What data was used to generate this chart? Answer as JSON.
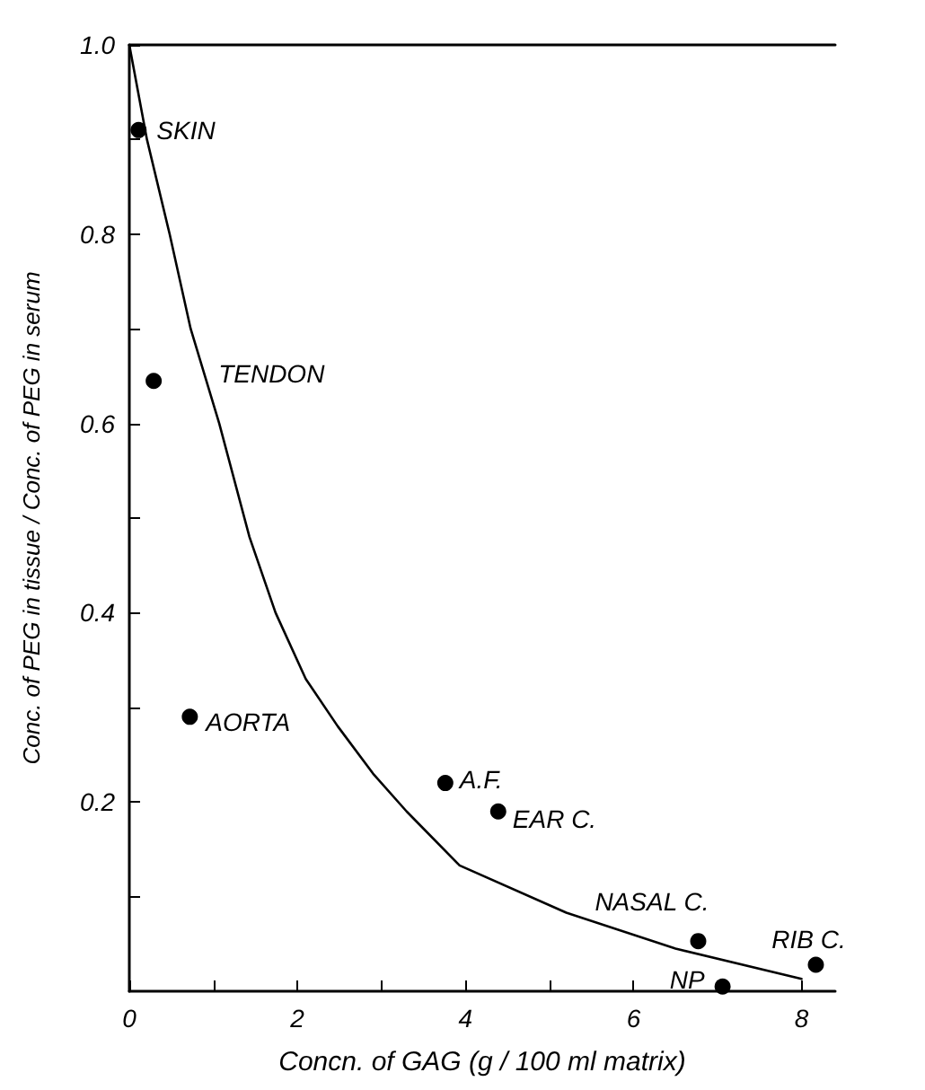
{
  "chart_data": {
    "type": "scatter",
    "xlabel": "Concn. of GAG (g / 100 ml matrix)",
    "ylabel": "Conc. of PEG in tissue / Conc. of PEG in serum",
    "xlim": [
      0,
      8.4
    ],
    "ylim": [
      0,
      1.0
    ],
    "xticks": [
      0,
      {
        "value": 1,
        "label": null
      },
      2,
      {
        "value": 3,
        "label": null
      },
      4,
      {
        "value": 5,
        "label": null
      },
      6,
      {
        "value": 7,
        "label": null
      },
      8
    ],
    "yticks": [
      {
        "value": 0.1,
        "label": null
      },
      0.2,
      {
        "value": 0.3,
        "label": null
      },
      0.4,
      {
        "value": 0.5,
        "label": null
      },
      0.6,
      {
        "value": 0.7,
        "label": null
      },
      0.8,
      {
        "value": 0.9,
        "label": null
      },
      {
        "value": 1,
        "label": "1.0"
      }
    ],
    "grid": false,
    "marker": "circle",
    "series": [
      {
        "color": "#000000",
        "x": [
          0.11,
          0.29,
          0.72,
          3.76,
          4.39,
          6.77,
          7.06,
          8.17
        ],
        "values": [
          0.91,
          0.645,
          0.29,
          0.22,
          0.19,
          0.053,
          0.005,
          0.028
        ]
      },
      {
        "type": "line",
        "color": "#000000",
        "marker": "none",
        "line_style": "solid",
        "x": [
          0,
          0.21,
          0.48,
          0.73,
          1.07,
          1.43,
          1.74,
          2.1,
          2.48,
          2.9,
          3.3,
          3.93,
          5.2,
          6.5,
          8
        ],
        "values": [
          1.0,
          0.9,
          0.8,
          0.7,
          0.6,
          0.48,
          0.4,
          0.33,
          0.28,
          0.23,
          0.19,
          0.133,
          0.083,
          0.045,
          0.013
        ]
      }
    ],
    "annotations": [
      {
        "text": "SKIN",
        "x": 0.11,
        "y": 0.91
      },
      {
        "text": "TENDON",
        "x": 0.29,
        "y": 0.645
      },
      {
        "text": "AORTA",
        "x": 0.72,
        "y": 0.29
      },
      {
        "text": "A.F.",
        "x": 3.76,
        "y": 0.22
      },
      {
        "text": "EAR C.",
        "x": 4.39,
        "y": 0.19
      },
      {
        "text": "NASAL C.",
        "x": 6.77,
        "y": 0.053
      },
      {
        "text": "NP",
        "x": 7.06,
        "y": 0.005
      },
      {
        "text": "RIB C.",
        "x": 8.17,
        "y": 0.028
      }
    ]
  }
}
